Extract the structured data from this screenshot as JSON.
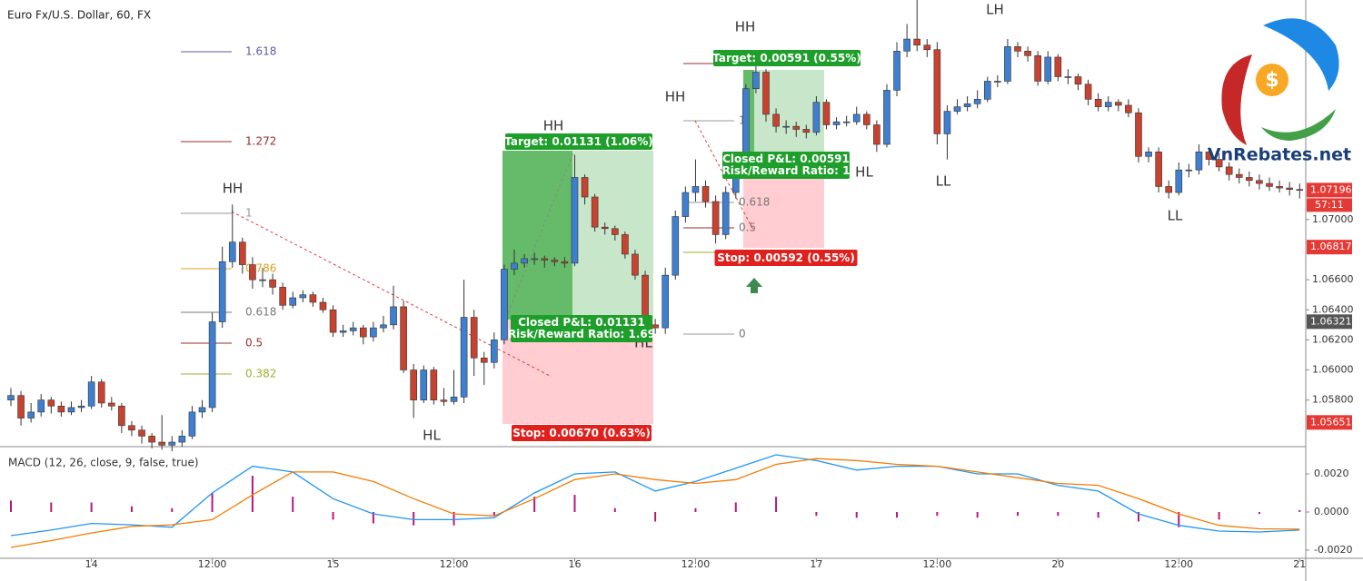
{
  "chart_data": [
    {
      "type": "candlestick",
      "title": "Euro Fx/U.S. Dollar, 60, FX",
      "up_color": "#3f7fd0",
      "down_color": "#c8432f",
      "ylim": [
        1.0549,
        1.0846
      ],
      "yticks": [
        {
          "value": 1.058,
          "label": "1.05800"
        },
        {
          "value": 1.06,
          "label": "1.06000"
        },
        {
          "value": 1.062,
          "label": "1.06200"
        },
        {
          "value": 1.064,
          "label": "1.06400"
        },
        {
          "value": 1.066,
          "label": "1.06600"
        },
        {
          "value": 1.07,
          "label": "1.07000"
        }
      ],
      "values": [
        [
          1.058,
          1.0588,
          1.0576,
          1.0583
        ],
        [
          1.0583,
          1.0586,
          1.0563,
          1.0568
        ],
        [
          1.0568,
          1.0578,
          1.0565,
          1.0572
        ],
        [
          1.0572,
          1.0584,
          1.0569,
          1.058
        ],
        [
          1.058,
          1.0582,
          1.0571,
          1.0576
        ],
        [
          1.0576,
          1.0579,
          1.0569,
          1.0572
        ],
        [
          1.0572,
          1.0579,
          1.057,
          1.0575
        ],
        [
          1.0575,
          1.058,
          1.0572,
          1.0576
        ],
        [
          1.0576,
          1.0596,
          1.0574,
          1.0592
        ],
        [
          1.0592,
          1.0594,
          1.0575,
          1.0578
        ],
        [
          1.0578,
          1.0582,
          1.0573,
          1.0576
        ],
        [
          1.0576,
          1.0578,
          1.0558,
          1.0563
        ],
        [
          1.0563,
          1.0566,
          1.0556,
          1.056
        ],
        [
          1.056,
          1.0563,
          1.0551,
          1.0556
        ],
        [
          1.0556,
          1.0558,
          1.0548,
          1.0552
        ],
        [
          1.0552,
          1.057,
          1.0547,
          1.055
        ],
        [
          1.055,
          1.0556,
          1.0546,
          1.0552
        ],
        [
          1.0552,
          1.056,
          1.0549,
          1.0556
        ],
        [
          1.0556,
          1.0576,
          1.0554,
          1.0572
        ],
        [
          1.0572,
          1.058,
          1.0568,
          1.0575
        ],
        [
          1.0575,
          1.0638,
          1.0572,
          1.0632
        ],
        [
          1.0632,
          1.0682,
          1.0628,
          1.0672
        ],
        [
          1.0672,
          1.071,
          1.0668,
          1.0685
        ],
        [
          1.0685,
          1.0688,
          1.0664,
          1.067
        ],
        [
          1.067,
          1.0675,
          1.0654,
          1.066
        ],
        [
          1.066,
          1.0668,
          1.0655,
          1.066
        ],
        [
          1.066,
          1.0664,
          1.065,
          1.0655
        ],
        [
          1.0655,
          1.0658,
          1.064,
          1.0643
        ],
        [
          1.0643,
          1.0652,
          1.0641,
          1.0648
        ],
        [
          1.0648,
          1.0653,
          1.0645,
          1.065
        ],
        [
          1.065,
          1.0652,
          1.0642,
          1.0645
        ],
        [
          1.0645,
          1.0648,
          1.0638,
          1.064
        ],
        [
          1.064,
          1.0643,
          1.0622,
          1.0625
        ],
        [
          1.0625,
          1.063,
          1.0622,
          1.0626
        ],
        [
          1.0626,
          1.0632,
          1.0623,
          1.0628
        ],
        [
          1.0628,
          1.063,
          1.0617,
          1.0622
        ],
        [
          1.0622,
          1.0632,
          1.0619,
          1.0628
        ],
        [
          1.0628,
          1.0636,
          1.0625,
          1.063
        ],
        [
          1.063,
          1.0656,
          1.0627,
          1.0642
        ],
        [
          1.0642,
          1.0646,
          1.0598,
          1.06
        ],
        [
          1.06,
          1.0604,
          1.0568,
          1.058
        ],
        [
          1.058,
          1.0603,
          1.0578,
          1.06
        ],
        [
          1.06,
          1.0602,
          1.0577,
          1.058
        ],
        [
          1.058,
          1.0588,
          1.0576,
          1.0579
        ],
        [
          1.0579,
          1.06,
          1.0577,
          1.0582
        ],
        [
          1.0582,
          1.066,
          1.0578,
          1.0635
        ],
        [
          1.0635,
          1.064,
          1.0596,
          1.0608
        ],
        [
          1.0608,
          1.0612,
          1.059,
          1.0605
        ],
        [
          1.0605,
          1.0625,
          1.0601,
          1.062
        ],
        [
          1.062,
          1.067,
          1.0617,
          1.0667
        ],
        [
          1.0667,
          1.068,
          1.0663,
          1.0671
        ],
        [
          1.0671,
          1.0677,
          1.0668,
          1.0674
        ],
        [
          1.0674,
          1.0678,
          1.067,
          1.0674
        ],
        [
          1.0674,
          1.0676,
          1.0668,
          1.0673
        ],
        [
          1.0673,
          1.0675,
          1.0669,
          1.0672
        ],
        [
          1.0672,
          1.0675,
          1.0668,
          1.0671
        ],
        [
          1.0671,
          1.0743,
          1.0669,
          1.0728
        ],
        [
          1.0728,
          1.073,
          1.071,
          1.0715
        ],
        [
          1.0715,
          1.0717,
          1.0692,
          1.0695
        ],
        [
          1.0695,
          1.0698,
          1.069,
          1.0694
        ],
        [
          1.0694,
          1.0696,
          1.0686,
          1.069
        ],
        [
          1.069,
          1.0692,
          1.0674,
          1.0677
        ],
        [
          1.0677,
          1.068,
          1.066,
          1.0663
        ],
        [
          1.0663,
          1.0666,
          1.0626,
          1.063
        ],
        [
          1.063,
          1.0634,
          1.0624,
          1.0628
        ],
        [
          1.0628,
          1.0668,
          1.0624,
          1.0663
        ],
        [
          1.0663,
          1.0706,
          1.066,
          1.0702
        ],
        [
          1.0702,
          1.0722,
          1.0698,
          1.0718
        ],
        [
          1.0718,
          1.074,
          1.0712,
          1.0722
        ],
        [
          1.0722,
          1.0726,
          1.0708,
          1.0712
        ],
        [
          1.0712,
          1.0716,
          1.0684,
          1.069
        ],
        [
          1.069,
          1.0722,
          1.0687,
          1.0718
        ],
        [
          1.0718,
          1.0738,
          1.0714,
          1.0733
        ],
        [
          1.0733,
          1.079,
          1.073,
          1.0787
        ],
        [
          1.0787,
          1.0802,
          1.0784,
          1.0798
        ],
        [
          1.0798,
          1.08,
          1.0765,
          1.077
        ],
        [
          1.077,
          1.0774,
          1.0758,
          1.0762
        ],
        [
          1.0762,
          1.0766,
          1.0757,
          1.0762
        ],
        [
          1.0762,
          1.0765,
          1.0755,
          1.076
        ],
        [
          1.076,
          1.0763,
          1.0754,
          1.0758
        ],
        [
          1.0758,
          1.0782,
          1.0756,
          1.0778
        ],
        [
          1.0778,
          1.078,
          1.076,
          1.0763
        ],
        [
          1.0763,
          1.0768,
          1.076,
          1.0765
        ],
        [
          1.0765,
          1.0769,
          1.0762,
          1.0765
        ],
        [
          1.0765,
          1.0775,
          1.0763,
          1.077
        ],
        [
          1.077,
          1.0772,
          1.076,
          1.0763
        ],
        [
          1.0763,
          1.0766,
          1.0745,
          1.075
        ],
        [
          1.075,
          1.079,
          1.0748,
          1.0786
        ],
        [
          1.0786,
          1.0818,
          1.0782,
          1.0812
        ],
        [
          1.0812,
          1.083,
          1.0808,
          1.082
        ],
        [
          1.082,
          1.0846,
          1.0812,
          1.0816
        ],
        [
          1.0816,
          1.082,
          1.0808,
          1.0813
        ],
        [
          1.0813,
          1.0818,
          1.075,
          1.0757
        ],
        [
          1.0757,
          1.0776,
          1.074,
          1.0772
        ],
        [
          1.0772,
          1.078,
          1.077,
          1.0775
        ],
        [
          1.0775,
          1.0782,
          1.0772,
          1.0777
        ],
        [
          1.0777,
          1.0786,
          1.0774,
          1.078
        ],
        [
          1.078,
          1.0795,
          1.0778,
          1.0792
        ],
        [
          1.0792,
          1.0796,
          1.0788,
          1.0792
        ],
        [
          1.0792,
          1.082,
          1.079,
          1.0815
        ],
        [
          1.0815,
          1.0818,
          1.0808,
          1.0812
        ],
        [
          1.0812,
          1.0815,
          1.0805,
          1.0809
        ],
        [
          1.0809,
          1.0812,
          1.0789,
          1.0792
        ],
        [
          1.0792,
          1.0812,
          1.079,
          1.0808
        ],
        [
          1.0808,
          1.081,
          1.0792,
          1.0795
        ],
        [
          1.0795,
          1.08,
          1.079,
          1.0795
        ],
        [
          1.0795,
          1.0797,
          1.0786,
          1.079
        ],
        [
          1.079,
          1.0793,
          1.0776,
          1.078
        ],
        [
          1.078,
          1.0784,
          1.0772,
          1.0775
        ],
        [
          1.0775,
          1.0782,
          1.0772,
          1.0778
        ],
        [
          1.0778,
          1.078,
          1.0772,
          1.0776
        ],
        [
          1.0776,
          1.078,
          1.0768,
          1.0771
        ],
        [
          1.0771,
          1.0774,
          1.0738,
          1.0742
        ],
        [
          1.0742,
          1.0748,
          1.0738,
          1.0745
        ],
        [
          1.0745,
          1.0748,
          1.0718,
          1.0722
        ],
        [
          1.0722,
          1.0726,
          1.0714,
          1.0718
        ],
        [
          1.0718,
          1.0738,
          1.0716,
          1.0733
        ],
        [
          1.0733,
          1.0737,
          1.0728,
          1.0733
        ],
        [
          1.0733,
          1.075,
          1.073,
          1.0745
        ],
        [
          1.0745,
          1.0748,
          1.0736,
          1.074
        ],
        [
          1.074,
          1.0744,
          1.0732,
          1.0735
        ],
        [
          1.0735,
          1.0738,
          1.0726,
          1.073
        ],
        [
          1.073,
          1.0734,
          1.0724,
          1.0728
        ],
        [
          1.0728,
          1.0732,
          1.0722,
          1.0726
        ],
        [
          1.0726,
          1.073,
          1.072,
          1.0724
        ],
        [
          1.0724,
          1.0728,
          1.0719,
          1.0722
        ],
        [
          1.0722,
          1.0726,
          1.0718,
          1.0721
        ],
        [
          1.0721,
          1.0725,
          1.0716,
          1.072
        ],
        [
          1.072,
          1.0724,
          1.0714,
          1.07196
        ]
      ],
      "price_tags": [
        {
          "value": 1.07196,
          "color": "#e53935"
        },
        {
          "value": 1.06817,
          "color": "#e53935"
        },
        {
          "value": 1.06321,
          "color": "#555555"
        },
        {
          "value": 1.05651,
          "color": "#e53935"
        }
      ],
      "countdown": "57:11",
      "annotations": [
        "HH",
        "HH",
        "HH",
        "HH",
        "HL",
        "HL",
        "HL",
        "LL",
        "LH",
        "LL"
      ],
      "fibonacci_left": [
        1.618,
        1.272,
        1,
        0.786,
        0.618,
        0.5,
        0.382
      ],
      "fibonacci_left_colors": [
        "#5b5ba6",
        "#9c2b2b",
        "#999999",
        "#e0a020",
        "#777777",
        "#9c2b2b",
        "#9bb02f"
      ],
      "fibonacci_right": [
        1,
        0.618,
        0.5,
        0
      ],
      "positions": [
        {
          "target": "Target: 0.01131 (1.06%)",
          "closed": "Closed P&L: 0.01131",
          "ratio": "Risk/Reward Ratio: 1.69",
          "stop": "Stop: 0.00670 (0.63%)"
        },
        {
          "target": "Target: 0.00591 (0.55%)",
          "closed": "Closed P&L: 0.00591",
          "ratio": "Risk/Reward Ratio: 1",
          "stop": "Stop: 0.00592 (0.55%)"
        }
      ],
      "watermark": "VnRebates.net"
    },
    {
      "type": "macd",
      "title": "MACD (12, 26, close, 9, false, true)",
      "categories": [
        null,
        null,
        "14",
        null,
        null,
        "12:00",
        null,
        null,
        "15",
        null,
        null,
        "12:00",
        null,
        null,
        "16",
        null,
        null,
        "12:00",
        null,
        null,
        "17",
        null,
        null,
        "12:00",
        null,
        null,
        "20",
        null,
        null,
        "12:00",
        null,
        null,
        "21"
      ],
      "ylim": [
        -0.00243,
        0.00343
      ],
      "yticks": [
        {
          "value": 0.002,
          "label": "0.0020"
        },
        {
          "value": 0,
          "label": "0.0000"
        },
        {
          "value": -0.002,
          "label": "-0.0020"
        }
      ],
      "series": [
        {
          "color": "#2196f3",
          "values": [
            -0.00124,
            -0.00095,
            -0.0006,
            -0.00067,
            -0.0008,
            0.001,
            0.0024,
            0.0021,
            0.0007,
            -0.0001,
            -0.0004,
            -0.0004,
            -0.0003,
            0.001,
            0.002,
            0.0021,
            0.0011,
            0.0016,
            0.0023,
            0.003,
            0.0027,
            0.0022,
            0.0024,
            0.0024,
            0.002,
            0.002,
            0.0014,
            0.0011,
            -0.0001,
            -0.0007,
            -0.001,
            -0.00105,
            -0.00095
          ]
        },
        {
          "color": "#f57c00",
          "values": [
            -0.00186,
            -0.0015,
            -0.0011,
            -0.00076,
            -0.00067,
            -0.0004,
            0.0009,
            0.0021,
            0.0021,
            0.0016,
            0.0007,
            -0.0001,
            -0.0002,
            0.0007,
            0.0017,
            0.002,
            0.0017,
            0.0015,
            0.0017,
            0.0025,
            0.0028,
            0.0027,
            0.0025,
            0.0024,
            0.0021,
            0.0018,
            0.0015,
            0.0014,
            0.0007,
            -0.0001,
            -0.0007,
            -0.00088,
            -0.0009
          ]
        }
      ],
      "histogram": {
        "color": "#b5187c",
        "values": [
          0.0006,
          0.0005,
          0.0005,
          0.0003,
          0.0002,
          0.001,
          0.0019,
          0.0008,
          -0.0004,
          -0.0006,
          -0.0007,
          -0.0007,
          -0.0002,
          0.0008,
          0.0009,
          0.0002,
          -0.0005,
          0.0002,
          0.0005,
          0.0008,
          -0.0002,
          -0.0003,
          -0.0003,
          -0.0002,
          -0.0003,
          -0.0002,
          -0.0002,
          -0.0003,
          -0.0005,
          -0.0008,
          -0.0004,
          -0.0001,
          0.0001
        ]
      }
    }
  ]
}
